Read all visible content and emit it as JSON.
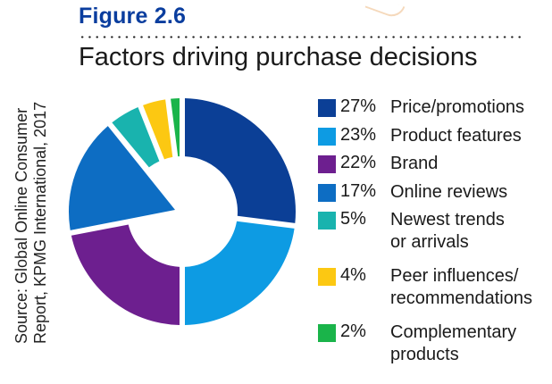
{
  "header": {
    "figure_label": "Figure 2.6",
    "title": "Factors driving purchase decisions"
  },
  "source": {
    "line1": "Source: Global Online Consumer",
    "line2": "Report, KPMG International, 2017"
  },
  "chart_data": {
    "type": "pie",
    "subtype": "donut",
    "title": "Factors driving purchase decisions",
    "start_angle": "12 o'clock",
    "direction": "clockwise",
    "slices": [
      {
        "label": "Price/promotions",
        "value": 27,
        "display": "27%",
        "color": "#0b3f96"
      },
      {
        "label": "Product features",
        "value": 23,
        "display": "23%",
        "color": "#0d9be3"
      },
      {
        "label": "Brand",
        "value": 22,
        "display": "22%",
        "color": "#6d1f8f"
      },
      {
        "label": "Online reviews",
        "value": 17,
        "display": "17%",
        "color": "#0d6dc3",
        "solid_wedge": true
      },
      {
        "label": "Newest trends or arrivals",
        "value": 5,
        "display": "5%",
        "color": "#19b3ae"
      },
      {
        "label": "Peer influences/ recommendations",
        "value": 4,
        "display": "4%",
        "color": "#fcc812"
      },
      {
        "label": "Complementary products",
        "value": 2,
        "display": "2%",
        "color": "#1ab44a"
      }
    ],
    "legend": {
      "placement": "right",
      "items": [
        {
          "pct": "27%",
          "lines": [
            "Price/promotions"
          ]
        },
        {
          "pct": "23%",
          "lines": [
            "Product features"
          ]
        },
        {
          "pct": "22%",
          "lines": [
            "Brand"
          ]
        },
        {
          "pct": "17%",
          "lines": [
            "Online reviews"
          ]
        },
        {
          "pct": "5%",
          "lines": [
            "Newest trends",
            "or arrivals"
          ]
        },
        {
          "pct": "4%",
          "lines": [
            "Peer influences/",
            "recommendations"
          ]
        },
        {
          "pct": "2%",
          "lines": [
            "Complementary",
            "products"
          ]
        }
      ]
    }
  }
}
